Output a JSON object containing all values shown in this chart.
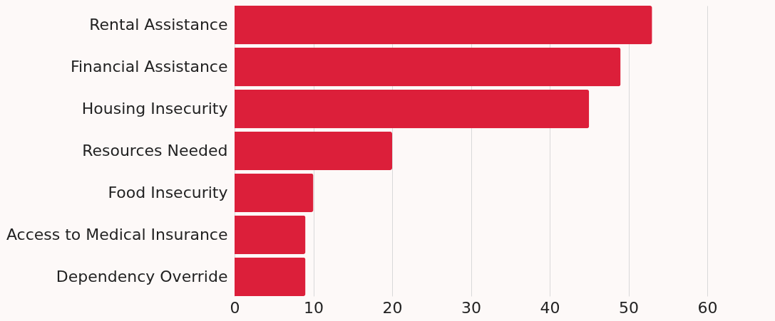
{
  "chart_data": {
    "type": "bar",
    "orientation": "horizontal",
    "categories": [
      "Rental Assistance",
      "Financial Assistance",
      "Housing Insecurity",
      "Resources Needed",
      "Food Insecurity",
      "Access to Medical Insurance",
      "Dependency Override"
    ],
    "values": [
      53,
      49,
      45,
      20,
      10,
      9,
      9
    ],
    "color": "#dc1f3a",
    "xlim": [
      0,
      60
    ],
    "xticks": [
      0,
      10,
      20,
      30,
      40,
      50,
      60
    ],
    "grid": "x"
  }
}
